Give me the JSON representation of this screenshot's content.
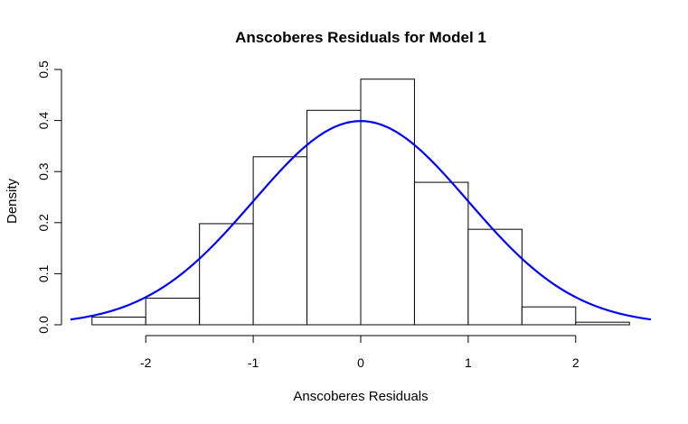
{
  "chart_data": {
    "type": "bar",
    "subtype": "histogram-with-density-curve",
    "title": "Anscoberes Residuals for Model 1",
    "xlabel": "Anscoberes Residuals",
    "ylabel": "Density",
    "xlim": [
      -2.7,
      2.7
    ],
    "ylim": [
      0,
      0.5
    ],
    "x_ticks": [
      -2,
      -1,
      0,
      1,
      2
    ],
    "x_tick_labels": [
      "-2",
      "-1",
      "0",
      "1",
      "2"
    ],
    "y_ticks": [
      0,
      0.1,
      0.2,
      0.3,
      0.4,
      0.5
    ],
    "y_tick_labels": [
      "0.0",
      "0.1",
      "0.2",
      "0.3",
      "0.4",
      "0.5"
    ],
    "bins": [
      {
        "from": -2.5,
        "to": -2.0,
        "density": 0.015
      },
      {
        "from": -2.0,
        "to": -1.5,
        "density": 0.052
      },
      {
        "from": -1.5,
        "to": -1.0,
        "density": 0.198
      },
      {
        "from": -1.0,
        "to": -0.5,
        "density": 0.329
      },
      {
        "from": -0.5,
        "to": 0.0,
        "density": 0.42
      },
      {
        "from": 0.0,
        "to": 0.5,
        "density": 0.481
      },
      {
        "from": 0.5,
        "to": 1.0,
        "density": 0.279
      },
      {
        "from": 1.0,
        "to": 1.5,
        "density": 0.187
      },
      {
        "from": 1.5,
        "to": 2.0,
        "density": 0.035
      },
      {
        "from": 2.0,
        "to": 2.5,
        "density": 0.005
      }
    ],
    "curve": {
      "type": "normal-density",
      "mean": 0,
      "sd": 1,
      "color": "#0000ff"
    },
    "grid": false
  }
}
